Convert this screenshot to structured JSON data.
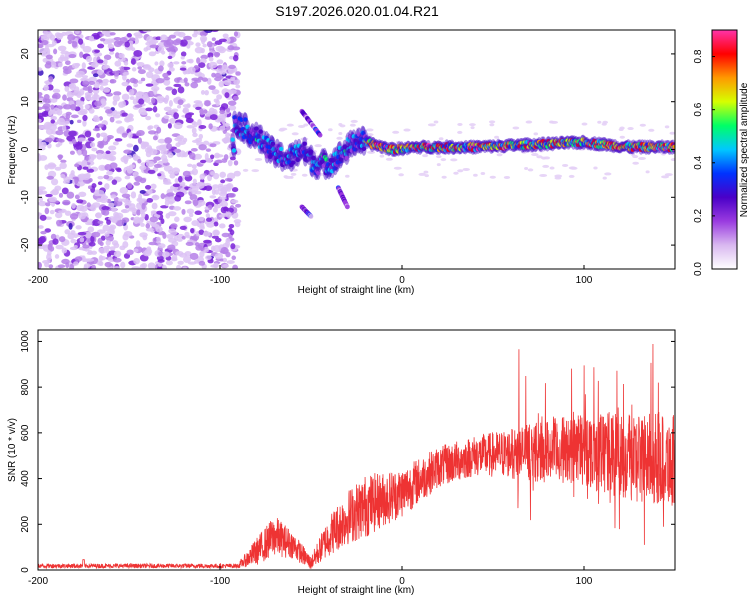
{
  "title": "S197.2026.020.01.04.R21",
  "chart_data": [
    {
      "type": "heatmap",
      "name": "spectrogram",
      "xlabel": "Height of straight line (km)",
      "ylabel": "Frequency (Hz)",
      "xlim": [
        -200,
        150
      ],
      "ylim": [
        -25,
        25
      ],
      "xticks": [
        -200,
        -100,
        0,
        100
      ],
      "yticks": [
        -20,
        -10,
        0,
        10,
        20
      ],
      "colorbar": {
        "label": "Normalized spectral amplitude",
        "range": [
          0.0,
          0.9
        ],
        "ticks": [
          0.0,
          0.2,
          0.4,
          0.6,
          0.8
        ],
        "colormap": [
          "#ffffff",
          "#d9b8f0",
          "#9a3be0",
          "#4a00c8",
          "#0033ff",
          "#00c8ff",
          "#00ff66",
          "#d6ff00",
          "#ff9900",
          "#ff0000",
          "#ff33aa"
        ]
      },
      "noise_region_x": [
        -200,
        -90
      ],
      "signal_track": [
        {
          "x": -92,
          "y": 6
        },
        {
          "x": -85,
          "y": 4
        },
        {
          "x": -78,
          "y": 2
        },
        {
          "x": -70,
          "y": -1
        },
        {
          "x": -62,
          "y": -2
        },
        {
          "x": -55,
          "y": 0
        },
        {
          "x": -48,
          "y": -3
        },
        {
          "x": -40,
          "y": -3
        },
        {
          "x": -33,
          "y": -1
        },
        {
          "x": -25,
          "y": 2
        },
        {
          "x": -15,
          "y": 1
        },
        {
          "x": -5,
          "y": 0
        },
        {
          "x": 10,
          "y": 0.5
        },
        {
          "x": 40,
          "y": 0.5
        },
        {
          "x": 70,
          "y": 1
        },
        {
          "x": 100,
          "y": 1.5
        },
        {
          "x": 125,
          "y": 0.5
        },
        {
          "x": 150,
          "y": 0.5
        }
      ],
      "branches": [
        {
          "x": [
            -55,
            -45
          ],
          "y": [
            8,
            3
          ]
        },
        {
          "x": [
            -35,
            -30
          ],
          "y": [
            -8,
            -12
          ]
        },
        {
          "x": [
            -55,
            -50
          ],
          "y": [
            -12,
            -14
          ]
        }
      ]
    },
    {
      "type": "line",
      "name": "snr",
      "xlabel": "Height of straight line (km)",
      "ylabel": "SNR (10 * v/v)",
      "xlim": [
        -200,
        150
      ],
      "ylim": [
        0,
        1050
      ],
      "xticks": [
        -200,
        -100,
        0,
        100
      ],
      "yticks": [
        0,
        200,
        400,
        600,
        800,
        1000
      ],
      "color": "#ee3333",
      "envelope": [
        {
          "x": -200,
          "mean": 18,
          "spread": 10
        },
        {
          "x": -90,
          "mean": 18,
          "spread": 10
        },
        {
          "x": -80,
          "mean": 80,
          "spread": 60
        },
        {
          "x": -70,
          "mean": 150,
          "spread": 90
        },
        {
          "x": -60,
          "mean": 110,
          "spread": 60
        },
        {
          "x": -50,
          "mean": 30,
          "spread": 30
        },
        {
          "x": -40,
          "mean": 150,
          "spread": 90
        },
        {
          "x": -30,
          "mean": 230,
          "spread": 120
        },
        {
          "x": -20,
          "mean": 280,
          "spread": 140
        },
        {
          "x": -10,
          "mean": 310,
          "spread": 120
        },
        {
          "x": 0,
          "mean": 340,
          "spread": 110
        },
        {
          "x": 20,
          "mean": 450,
          "spread": 90
        },
        {
          "x": 40,
          "mean": 500,
          "spread": 90
        },
        {
          "x": 60,
          "mean": 510,
          "spread": 110
        },
        {
          "x": 80,
          "mean": 520,
          "spread": 140
        },
        {
          "x": 100,
          "mean": 530,
          "spread": 160
        },
        {
          "x": 120,
          "mean": 500,
          "spread": 200
        },
        {
          "x": 150,
          "mean": 480,
          "spread": 200
        }
      ]
    }
  ]
}
